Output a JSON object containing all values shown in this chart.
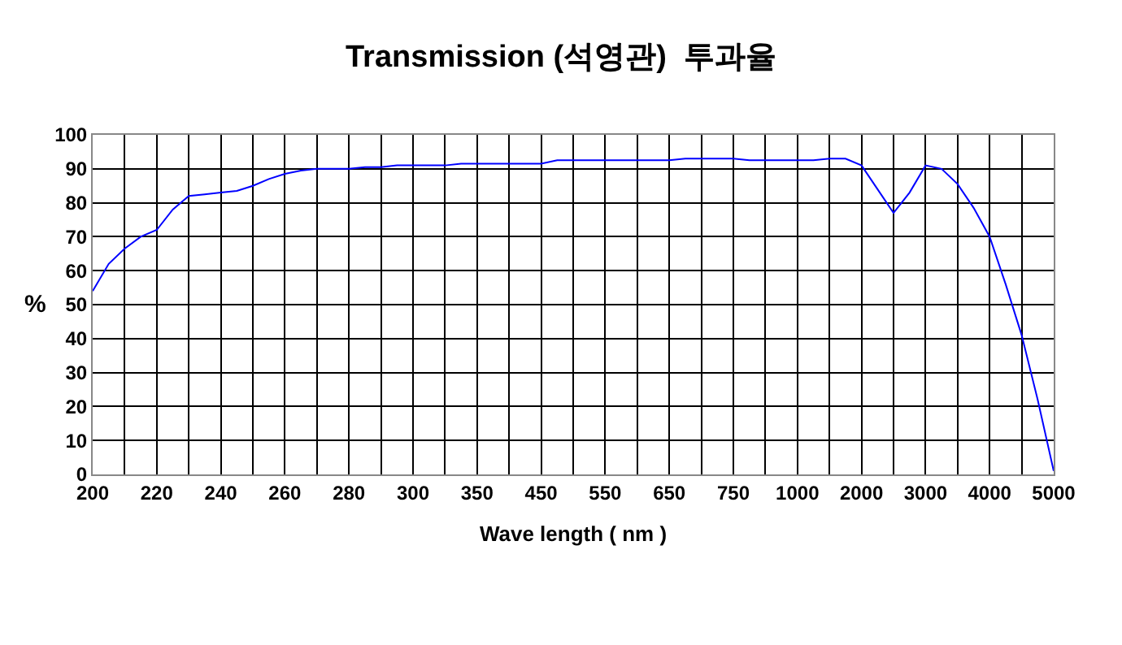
{
  "chart_data": {
    "type": "line",
    "title": "Transmission (석영관)  투과율",
    "xlabel": "Wave length ( nm )",
    "ylabel": "%",
    "categories": [
      "200",
      null,
      null,
      null,
      "220",
      null,
      null,
      null,
      "240",
      null,
      null,
      null,
      "260",
      null,
      null,
      null,
      "280",
      null,
      null,
      null,
      "300",
      null,
      null,
      null,
      "350",
      null,
      null,
      null,
      "450",
      null,
      null,
      null,
      "550",
      null,
      null,
      null,
      "650",
      null,
      null,
      null,
      "750",
      null,
      null,
      null,
      "1000",
      null,
      null,
      null,
      "2000",
      null,
      null,
      null,
      "3000",
      null,
      null,
      null,
      "4000",
      null,
      null,
      null,
      "5000"
    ],
    "series": [
      {
        "color": "#0000ff",
        "values": [
          54,
          62,
          66.5,
          70,
          72,
          78,
          82,
          82.5,
          83,
          83.5,
          85,
          87,
          88.5,
          89.5,
          90,
          90,
          90,
          90.5,
          90.5,
          91,
          91,
          91,
          91,
          91.5,
          91.5,
          91.5,
          91.5,
          91.5,
          91.5,
          92.5,
          92.5,
          92.5,
          92.5,
          92.5,
          92.5,
          92.5,
          92.5,
          93,
          93,
          93,
          93,
          92.5,
          92.5,
          92.5,
          92.5,
          92.5,
          93,
          93,
          91,
          84,
          77,
          83,
          91,
          90,
          85.5,
          78.5,
          70,
          56,
          41,
          22,
          1
        ]
      }
    ],
    "ylim": [
      0,
      100
    ],
    "yticks": [
      0,
      10,
      20,
      30,
      40,
      50,
      60,
      70,
      80,
      90,
      100
    ],
    "grid": true,
    "marker": "none",
    "line_style": "solid"
  }
}
